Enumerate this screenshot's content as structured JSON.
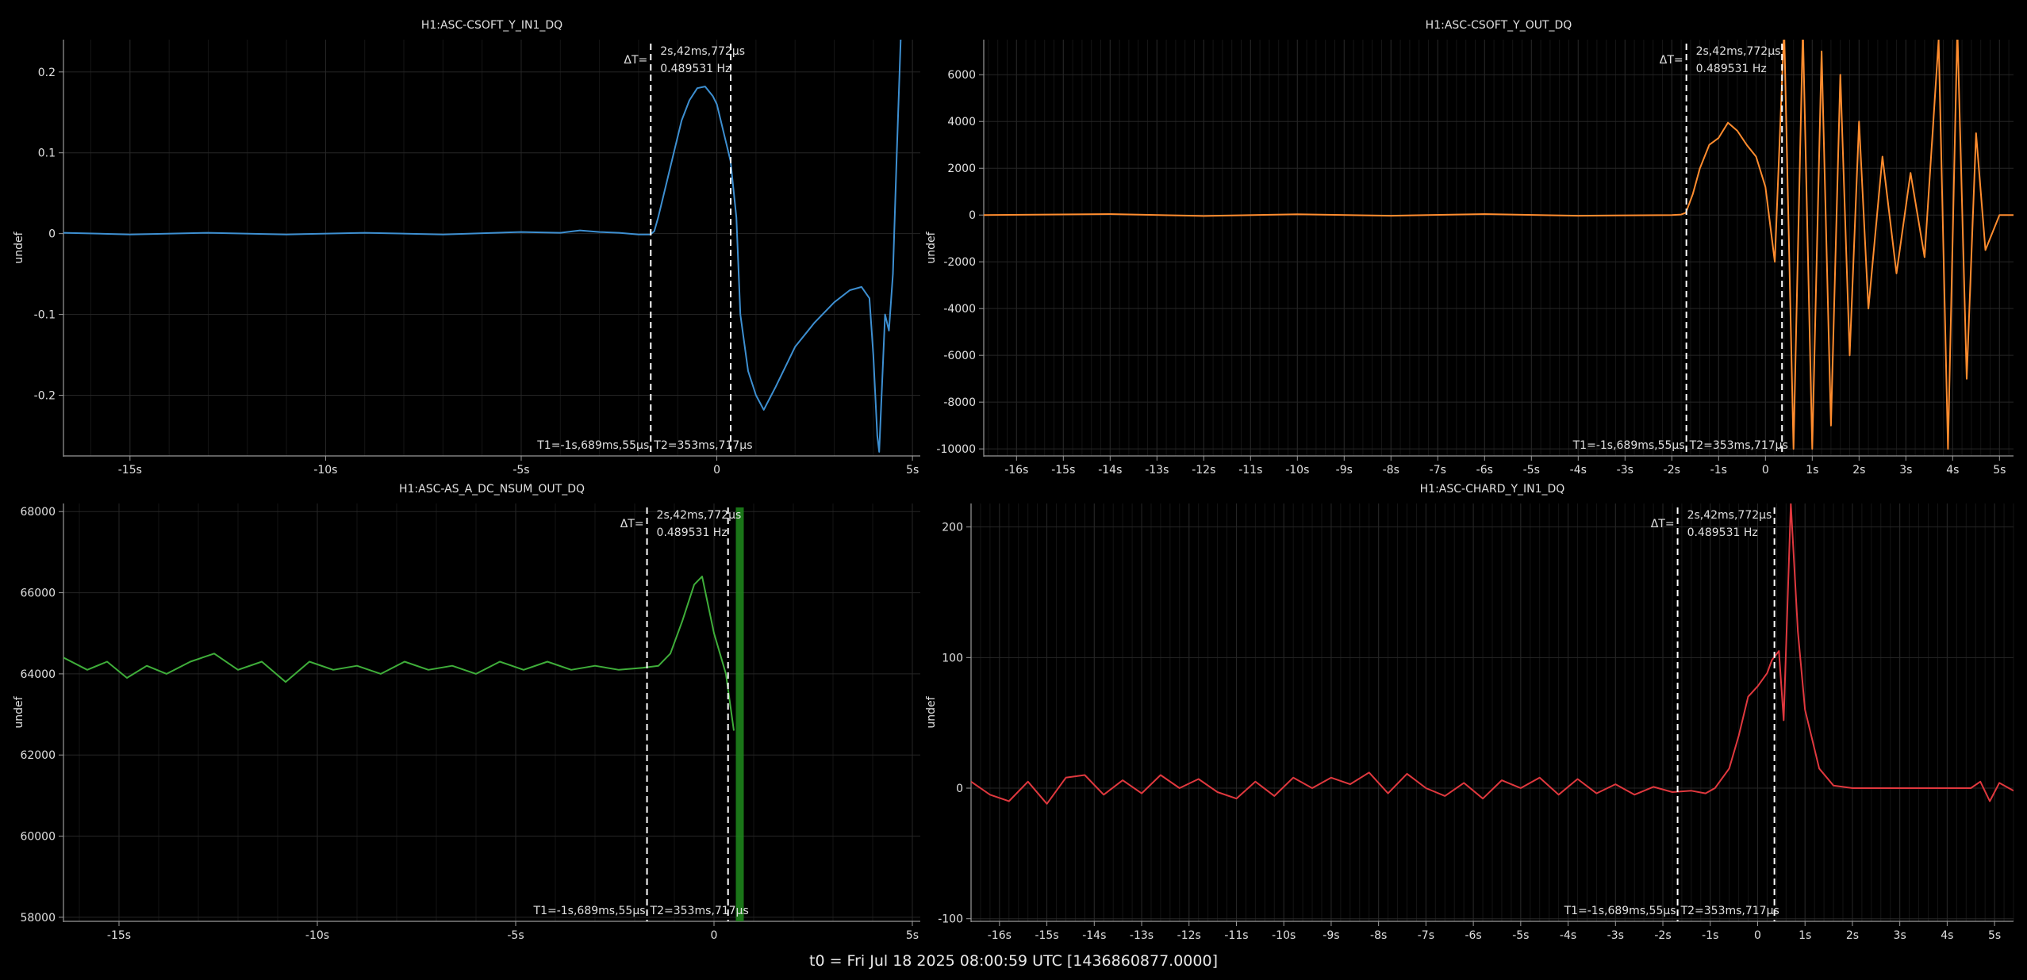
{
  "footer": {
    "t0": "t0 = Fri Jul 18 2025 08:00:59 UTC [1436860877.0000]"
  },
  "cursor": {
    "delta_label": "ΔT=",
    "delta_time": "2s,42ms,772µs",
    "delta_freq": "0.489531 Hz",
    "t1_label": "T1=-1s,689ms,55µs",
    "t2_label": "T2=353ms,717µs",
    "t1": -1.689,
    "t2": 0.354
  },
  "colors": {
    "background": "#000000",
    "grid": "#262626",
    "axis": "#9a9a9a",
    "text": "#e0e0e0",
    "series": [
      "#3d8fd1",
      "#ff8c2e",
      "#3fae3a",
      "#e0383e"
    ]
  },
  "chart_data": [
    {
      "type": "line",
      "title": "H1:ASC-CSOFT_Y_IN1_DQ",
      "ylabel": "undef",
      "xlabel": "",
      "xlim": [
        -16.7,
        5.2
      ],
      "ylim": [
        -0.275,
        0.24
      ],
      "xticks": [
        -15,
        -10,
        -5,
        0,
        5
      ],
      "xtick_labels": [
        "-15s",
        "-10s",
        "-5s",
        "0",
        "5s"
      ],
      "yticks": [
        0.2,
        0.1,
        0,
        -0.1,
        -0.2
      ],
      "ytick_labels": [
        "0.2",
        "0.1",
        "0",
        "-0.1",
        "-0.2"
      ],
      "grid": true,
      "series": [
        {
          "color": "#3d8fd1",
          "x": [
            -16.7,
            -15,
            -13,
            -11,
            -9,
            -7,
            -5,
            -4,
            -3.5,
            -3,
            -2.5,
            -2,
            -1.7,
            -1.6,
            -1.5,
            -1.3,
            -1.1,
            -0.9,
            -0.7,
            -0.5,
            -0.3,
            -0.1,
            0,
            0.2,
            0.35,
            0.5,
            0.6,
            0.8,
            1.0,
            1.2,
            1.5,
            2.0,
            2.5,
            3.0,
            3.4,
            3.7,
            3.9,
            4.0,
            4.1,
            4.15,
            4.3,
            4.4,
            4.5,
            4.6,
            4.7
          ],
          "y": [
            0.001,
            -0.001,
            0.001,
            -0.001,
            0.001,
            -0.001,
            0.002,
            0.001,
            0.004,
            0.002,
            0.001,
            -0.001,
            -0.001,
            0.003,
            0.02,
            0.06,
            0.1,
            0.14,
            0.165,
            0.18,
            0.182,
            0.17,
            0.16,
            0.12,
            0.09,
            0.02,
            -0.1,
            -0.17,
            -0.2,
            -0.218,
            -0.19,
            -0.14,
            -0.11,
            -0.085,
            -0.07,
            -0.066,
            -0.08,
            -0.15,
            -0.25,
            -0.27,
            -0.1,
            -0.12,
            -0.05,
            0.1,
            0.24
          ]
        }
      ]
    },
    {
      "type": "line",
      "title": "H1:ASC-CSOFT_Y_OUT_DQ",
      "ylabel": "undef",
      "xlabel": "",
      "xlim": [
        -16.7,
        5.3
      ],
      "ylim": [
        -10300,
        7500
      ],
      "xticks": [
        -16,
        -15,
        -14,
        -13,
        -12,
        -11,
        -10,
        -9,
        -8,
        -7,
        -6,
        -5,
        -4,
        -3,
        -2,
        -1,
        0,
        1,
        2,
        3,
        4,
        5
      ],
      "xtick_labels": [
        "-16s",
        "-15s",
        "-14s",
        "-13s",
        "-12s",
        "-11s",
        "-10s",
        "-9s",
        "-8s",
        "-7s",
        "-6s",
        "-5s",
        "-4s",
        "-3s",
        "-2s",
        "-1s",
        "0",
        "1s",
        "2s",
        "3s",
        "4s",
        "5s"
      ],
      "yticks": [
        6000,
        4000,
        2000,
        0,
        -2000,
        -4000,
        -6000,
        -8000,
        -10000
      ],
      "ytick_labels": [
        "6000",
        "4000",
        "2000",
        "0",
        "-2000",
        "-4000",
        "-6000",
        "-8000",
        "-10000"
      ],
      "grid": true,
      "series": [
        {
          "color": "#ff8c2e",
          "x": [
            -16.7,
            -14,
            -12,
            -10,
            -8,
            -6,
            -4,
            -2,
            -1.8,
            -1.7,
            -1.55,
            -1.4,
            -1.2,
            -1.0,
            -0.8,
            -0.6,
            -0.4,
            -0.2,
            0,
            0.2,
            0.4,
            0.6,
            0.8,
            1.0,
            1.2,
            1.4,
            1.6,
            1.8,
            2.0,
            2.2,
            2.5,
            2.8,
            3.1,
            3.4,
            3.7,
            3.9,
            4.1,
            4.3,
            4.5,
            4.7,
            5.0,
            5.3
          ],
          "y": [
            0,
            40,
            -40,
            30,
            -30,
            40,
            -30,
            0,
            20,
            100,
            900,
            2000,
            3000,
            3300,
            3950,
            3600,
            3000,
            2500,
            1200,
            -2000,
            8000,
            -10000,
            8000,
            -10000,
            7000,
            -9000,
            6000,
            -6000,
            4000,
            -4000,
            2500,
            -2500,
            1800,
            -1800,
            7500,
            -10000,
            8000,
            -7000,
            3500,
            -1500,
            0,
            0
          ]
        }
      ]
    },
    {
      "type": "line",
      "title": "H1:ASC-AS_A_DC_NSUM_OUT_DQ",
      "ylabel": "undef",
      "xlabel": "",
      "xlim": [
        -16.4,
        5.2
      ],
      "ylim": [
        57900,
        68200
      ],
      "xticks": [
        -15,
        -10,
        -5,
        0,
        5
      ],
      "xtick_labels": [
        "-15s",
        "-10s",
        "-5s",
        "0",
        "5s"
      ],
      "yticks": [
        68000,
        66000,
        64000,
        62000,
        60000,
        58000
      ],
      "ytick_labels": [
        "68000",
        "66000",
        "64000",
        "62000",
        "60000",
        "58000"
      ],
      "grid": true,
      "series": [
        {
          "color": "#3fae3a",
          "x": [
            -16.4,
            -15.8,
            -15.3,
            -14.8,
            -14.3,
            -13.8,
            -13.2,
            -12.6,
            -12.0,
            -11.4,
            -10.8,
            -10.2,
            -9.6,
            -9.0,
            -8.4,
            -7.8,
            -7.2,
            -6.6,
            -6.0,
            -5.4,
            -4.8,
            -4.2,
            -3.6,
            -3.0,
            -2.4,
            -1.8,
            -1.4,
            -1.1,
            -0.8,
            -0.5,
            -0.3,
            0,
            0.3,
            0.5
          ],
          "y": [
            64400,
            64100,
            64300,
            63900,
            64200,
            64000,
            64300,
            64500,
            64100,
            64300,
            63800,
            64300,
            64100,
            64200,
            64000,
            64300,
            64100,
            64200,
            64000,
            64300,
            64100,
            64300,
            64100,
            64200,
            64100,
            64150,
            64200,
            64500,
            65300,
            66200,
            66400,
            65000,
            64000,
            62600
          ]
        }
      ]
    },
    {
      "type": "line",
      "title": "H1:ASC-CHARD_Y_IN1_DQ",
      "ylabel": "undef",
      "xlabel": "",
      "xlim": [
        -16.6,
        5.4
      ],
      "ylim": [
        -102,
        218
      ],
      "xticks": [
        -16,
        -15,
        -14,
        -13,
        -12,
        -11,
        -10,
        -9,
        -8,
        -7,
        -6,
        -5,
        -4,
        -3,
        -2,
        -1,
        0,
        1,
        2,
        3,
        4,
        5
      ],
      "xtick_labels": [
        "-16s",
        "-15s",
        "-14s",
        "-13s",
        "-12s",
        "-11s",
        "-10s",
        "-9s",
        "-8s",
        "-7s",
        "-6s",
        "-5s",
        "-4s",
        "-3s",
        "-2s",
        "-1s",
        "0",
        "1s",
        "2s",
        "3s",
        "4s",
        "5s"
      ],
      "yticks": [
        200,
        100,
        0,
        -100
      ],
      "ytick_labels": [
        "200",
        "100",
        "0",
        "-100"
      ],
      "grid": true,
      "series": [
        {
          "color": "#e0383e",
          "x": [
            -16.6,
            -16.2,
            -15.8,
            -15.4,
            -15.0,
            -14.6,
            -14.2,
            -13.8,
            -13.4,
            -13.0,
            -12.6,
            -12.2,
            -11.8,
            -11.4,
            -11.0,
            -10.6,
            -10.2,
            -9.8,
            -9.4,
            -9.0,
            -8.6,
            -8.2,
            -7.8,
            -7.4,
            -7.0,
            -6.6,
            -6.2,
            -5.8,
            -5.4,
            -5.0,
            -4.6,
            -4.2,
            -3.8,
            -3.4,
            -3.0,
            -2.6,
            -2.2,
            -1.8,
            -1.4,
            -1.1,
            -0.9,
            -0.6,
            -0.4,
            -0.2,
            0,
            0.2,
            0.3,
            0.45,
            0.55,
            0.7,
            0.85,
            1.0,
            1.3,
            1.6,
            2.0,
            2.5,
            3.0,
            3.5,
            4.0,
            4.5,
            4.7,
            4.9,
            5.1,
            5.4
          ],
          "y": [
            5,
            -5,
            -10,
            5,
            -12,
            8,
            10,
            -5,
            6,
            -4,
            10,
            0,
            7,
            -3,
            -8,
            5,
            -6,
            8,
            0,
            8,
            3,
            12,
            -4,
            11,
            0,
            -6,
            4,
            -8,
            6,
            0,
            8,
            -5,
            7,
            -4,
            3,
            -5,
            1,
            -3,
            -2,
            -4,
            0,
            15,
            40,
            70,
            78,
            88,
            98,
            105,
            52,
            218,
            120,
            60,
            15,
            2,
            0,
            0,
            0,
            0,
            0,
            0,
            5,
            -10,
            4,
            -2
          ]
        }
      ]
    }
  ]
}
